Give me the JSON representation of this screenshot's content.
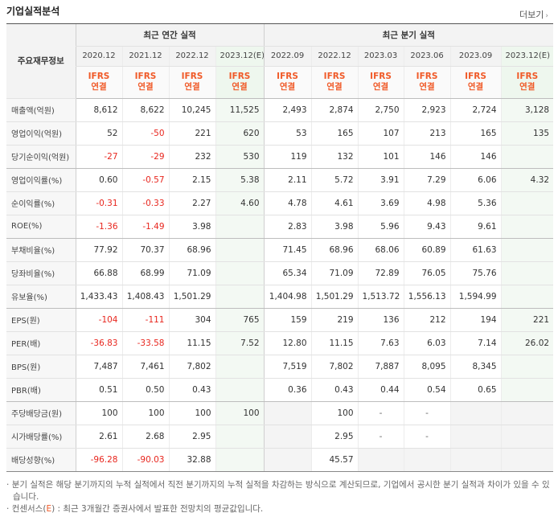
{
  "header": {
    "title": "기업실적분석",
    "more_label": "더보기",
    "more_arrow": "›"
  },
  "table": {
    "row_header_label": "주요재무정보",
    "group_annual": "최근 연간 실적",
    "group_quarter": "최근 분기 실적",
    "periods": [
      "2020.12",
      "2021.12",
      "2022.12",
      "2023.12(E)",
      "2022.09",
      "2022.12",
      "2023.03",
      "2023.06",
      "2023.09",
      "2023.12(E)"
    ],
    "ifrs_top": "IFRS",
    "ifrs_bottom": "연결",
    "rows": [
      {
        "label": "매출액(억원)",
        "values": [
          "8,612",
          "8,622",
          "10,245",
          "11,525",
          "2,493",
          "2,874",
          "2,750",
          "2,923",
          "2,724",
          "3,128"
        ]
      },
      {
        "label": "영업이익(억원)",
        "values": [
          "52",
          "-50",
          "221",
          "620",
          "53",
          "165",
          "107",
          "213",
          "165",
          "135"
        ]
      },
      {
        "label": "당기순이익(억원)",
        "values": [
          "-27",
          "-29",
          "232",
          "530",
          "119",
          "132",
          "101",
          "146",
          "146",
          ""
        ]
      },
      {
        "label": "영업이익률(%)",
        "values": [
          "0.60",
          "-0.57",
          "2.15",
          "5.38",
          "2.11",
          "5.72",
          "3.91",
          "7.29",
          "6.06",
          "4.32"
        ]
      },
      {
        "label": "순이익률(%)",
        "values": [
          "-0.31",
          "-0.33",
          "2.27",
          "4.60",
          "4.78",
          "4.61",
          "3.69",
          "4.98",
          "5.36",
          ""
        ]
      },
      {
        "label": "ROE(%)",
        "values": [
          "-1.36",
          "-1.49",
          "3.98",
          "",
          "2.83",
          "3.98",
          "5.96",
          "9.43",
          "9.61",
          ""
        ]
      },
      {
        "label": "부채비율(%)",
        "values": [
          "77.92",
          "70.37",
          "68.96",
          "",
          "71.45",
          "68.96",
          "68.06",
          "60.89",
          "61.63",
          ""
        ]
      },
      {
        "label": "당좌비율(%)",
        "values": [
          "66.88",
          "68.99",
          "71.09",
          "",
          "65.34",
          "71.09",
          "72.89",
          "76.05",
          "75.76",
          ""
        ]
      },
      {
        "label": "유보율(%)",
        "values": [
          "1,433.43",
          "1,408.43",
          "1,501.29",
          "",
          "1,404.98",
          "1,501.29",
          "1,513.72",
          "1,556.13",
          "1,594.99",
          ""
        ]
      },
      {
        "label": "EPS(원)",
        "values": [
          "-104",
          "-111",
          "304",
          "765",
          "159",
          "219",
          "136",
          "212",
          "194",
          "221"
        ]
      },
      {
        "label": "PER(배)",
        "values": [
          "-36.83",
          "-33.58",
          "11.15",
          "7.52",
          "12.80",
          "11.15",
          "7.63",
          "6.03",
          "7.14",
          "26.02"
        ]
      },
      {
        "label": "BPS(원)",
        "values": [
          "7,487",
          "7,461",
          "7,802",
          "",
          "7,519",
          "7,802",
          "7,887",
          "8,095",
          "8,345",
          ""
        ]
      },
      {
        "label": "PBR(배)",
        "values": [
          "0.51",
          "0.50",
          "0.43",
          "",
          "0.36",
          "0.43",
          "0.44",
          "0.54",
          "0.65",
          ""
        ]
      },
      {
        "label": "주당배당금(원)",
        "values": [
          "100",
          "100",
          "100",
          "100",
          "",
          "100",
          "-",
          "-",
          "",
          ""
        ]
      },
      {
        "label": "시가배당률(%)",
        "values": [
          "2.61",
          "2.68",
          "2.95",
          "",
          "",
          "2.95",
          "-",
          "-",
          "",
          ""
        ]
      },
      {
        "label": "배당성향(%)",
        "values": [
          "-96.28",
          "-90.03",
          "32.88",
          "",
          "",
          "45.57",
          "",
          "",
          "",
          ""
        ]
      }
    ]
  },
  "notes": {
    "line1": "분기 실적은 해당 분기까지의 누적 실적에서 직전 분기까지의 누적 실적을 차감하는 방식으로 계산되므로, 기업에서 공시한 분기 실적과 차이가 있을 수 있습니다.",
    "line2_prefix": "컨센서스(",
    "line2_mark": "E",
    "line2_suffix": ") : 최근 3개월간 증권사에서 발표한 전망치의 평균값입니다."
  },
  "colors": {
    "negative": "#e8261e",
    "ifrs": "#f05a28",
    "estimate_bg": "#f3f9f3"
  }
}
